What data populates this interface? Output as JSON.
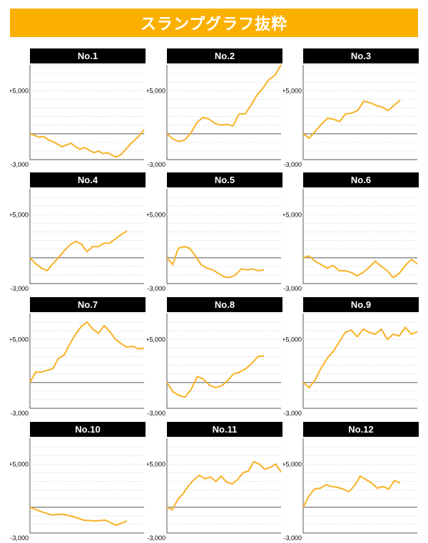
{
  "page": {
    "title": "スランプグラフ抜粋"
  },
  "colors": {
    "banner": "#fbb000",
    "line": "#f7b124",
    "zero_line": "#777777",
    "grid": "#cfcfcf",
    "header": "#000000"
  },
  "axis": {
    "top_label": "+5,000",
    "bottom_label": "-3,000"
  },
  "chart_data": [
    {
      "type": "line",
      "title": "No.1",
      "ylim": [
        -3000,
        8000
      ],
      "yticks": [
        "+5,000",
        "-3,000"
      ],
      "values": [
        0,
        -200,
        -400,
        -300,
        -700,
        -900,
        -1200,
        -1500,
        -1300,
        -1100,
        -1500,
        -1800,
        -1600,
        -1900,
        -2200,
        -2000,
        -2300,
        -2200,
        -2500,
        -2700,
        -2400,
        -1800,
        -1200,
        -700,
        -200,
        500
      ]
    },
    {
      "type": "line",
      "title": "No.2",
      "ylim": [
        -3000,
        8000
      ],
      "yticks": [
        "+5,000",
        "-3,000"
      ],
      "values": [
        0,
        -600,
        -900,
        -700,
        100,
        1300,
        1900,
        1700,
        1200,
        1000,
        1100,
        900,
        2300,
        2300,
        3300,
        4500,
        5300,
        6300,
        6800,
        8000
      ]
    },
    {
      "type": "line",
      "title": "No.3",
      "ylim": [
        -3000,
        8000
      ],
      "yticks": [
        "+5,000",
        "-3,000"
      ],
      "values": [
        0,
        -500,
        300,
        1100,
        1800,
        1700,
        1400,
        2300,
        2400,
        2700,
        3800,
        3600,
        3300,
        3100,
        2700,
        3300,
        3900
      ]
    },
    {
      "type": "line",
      "title": "No.4",
      "ylim": [
        -3000,
        8000
      ],
      "yticks": [
        "+5,000",
        "-3,000"
      ],
      "values": [
        0,
        -700,
        -1200,
        -1500,
        -700,
        0,
        800,
        1500,
        1900,
        1600,
        700,
        1300,
        1300,
        1700,
        1700,
        2200,
        2700,
        3100
      ]
    },
    {
      "type": "line",
      "title": "No.5",
      "ylim": [
        -3000,
        8000
      ],
      "yticks": [
        "+5,000",
        "-3,000"
      ],
      "values": [
        0,
        -800,
        1100,
        1300,
        1100,
        200,
        -800,
        -1200,
        -1400,
        -1800,
        -2200,
        -2300,
        -2000,
        -1300,
        -1400,
        -1300,
        -1500,
        -1400
      ]
    },
    {
      "type": "line",
      "title": "No.6",
      "ylim": [
        -3000,
        8000
      ],
      "yticks": [
        "+5,000",
        "-3,000"
      ],
      "values": [
        0,
        200,
        -400,
        -800,
        -1200,
        -900,
        -1500,
        -1500,
        -1700,
        -2100,
        -1700,
        -1100,
        -400,
        -1000,
        -1500,
        -2300,
        -1800,
        -900,
        -200,
        -700
      ]
    },
    {
      "type": "line",
      "title": "No.7",
      "ylim": [
        -3000,
        8000
      ],
      "yticks": [
        "+5,000",
        "-3,000"
      ],
      "values": [
        0,
        1200,
        1200,
        1400,
        1600,
        2800,
        3200,
        4500,
        5600,
        6500,
        7000,
        6200,
        5700,
        6600,
        5900,
        5000,
        4500,
        4100,
        4200,
        3900,
        4000
      ]
    },
    {
      "type": "line",
      "title": "No.8",
      "ylim": [
        -3000,
        8000
      ],
      "yticks": [
        "+5,000",
        "-3,000"
      ],
      "values": [
        0,
        -1100,
        -1500,
        -1700,
        -800,
        700,
        400,
        -300,
        -600,
        -400,
        200,
        1000,
        1200,
        1600,
        2200,
        3000,
        3100
      ]
    },
    {
      "type": "line",
      "title": "No.9",
      "ylim": [
        -3000,
        8000
      ],
      "yticks": [
        "+5,000",
        "-3,000"
      ],
      "values": [
        0,
        -600,
        300,
        1700,
        2800,
        3600,
        4700,
        5800,
        6100,
        5300,
        6200,
        5800,
        5600,
        6200,
        5000,
        5600,
        5400,
        6400,
        5600,
        5900
      ]
    },
    {
      "type": "line",
      "title": "No.10",
      "ylim": [
        -3000,
        8000
      ],
      "yticks": [
        "+5,000",
        "-3,000"
      ],
      "values": [
        0,
        -500,
        -900,
        -800,
        -1100,
        -1500,
        -1600,
        -1500,
        -2100,
        -1600
      ]
    },
    {
      "type": "line",
      "title": "No.11",
      "ylim": [
        -3000,
        8000
      ],
      "yticks": [
        "+5,000",
        "-3,000"
      ],
      "values": [
        0,
        -300,
        900,
        1600,
        2500,
        3200,
        3700,
        3300,
        3500,
        3000,
        3600,
        2900,
        2700,
        3200,
        4000,
        4200,
        5300,
        5000,
        4400,
        4600,
        5000,
        4100
      ]
    },
    {
      "type": "line",
      "title": "No.12",
      "ylim": [
        -3000,
        8000
      ],
      "yticks": [
        "+5,000",
        "-3,000"
      ],
      "values": [
        0,
        1300,
        2100,
        2200,
        2600,
        2400,
        2300,
        2100,
        1800,
        2500,
        3600,
        3200,
        2800,
        2200,
        2400,
        2100,
        3100,
        2800
      ]
    }
  ]
}
